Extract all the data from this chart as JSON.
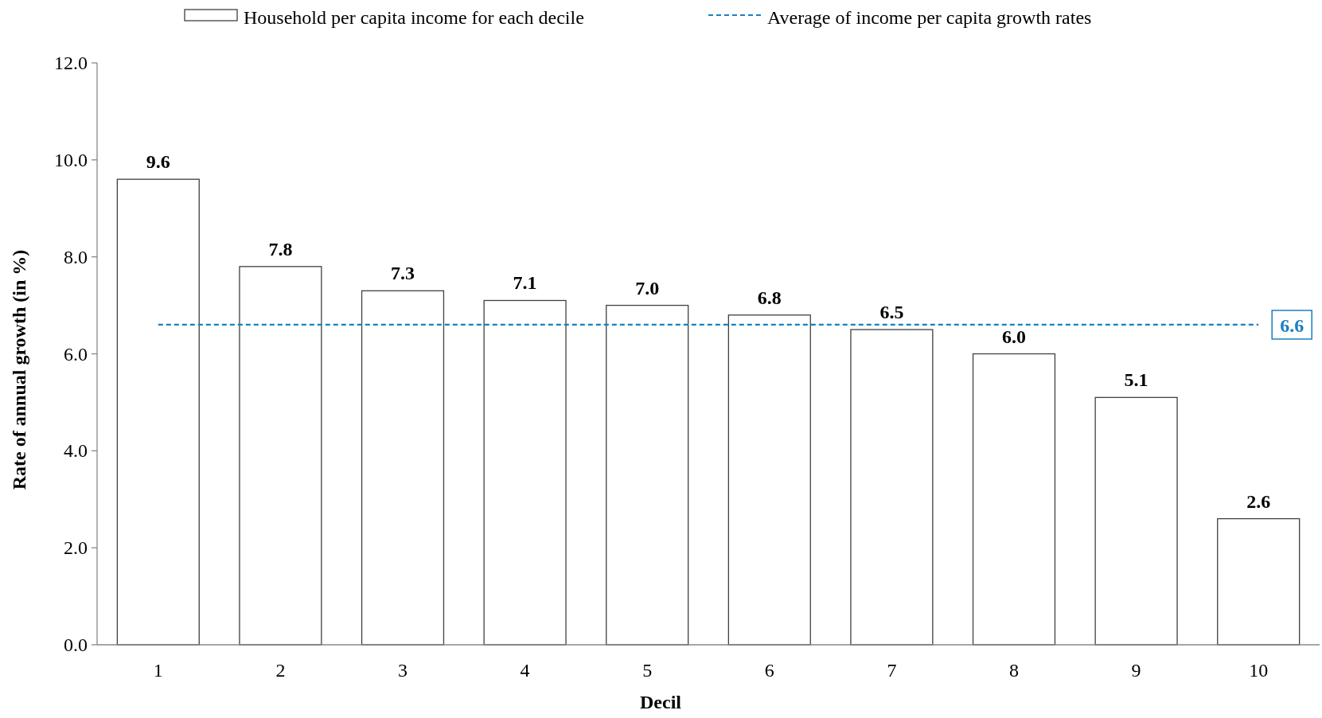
{
  "chart_data": {
    "type": "bar",
    "xlabel": "Decil",
    "ylabel": "Rate of annual growth (in %)",
    "categories": [
      "1",
      "2",
      "3",
      "4",
      "5",
      "6",
      "7",
      "8",
      "9",
      "10"
    ],
    "series": [
      {
        "name": "Household per capita income for each decile",
        "color": "#ffffff",
        "values": [
          9.6,
          7.8,
          7.3,
          7.1,
          7.0,
          6.8,
          6.5,
          6.0,
          5.1,
          2.6
        ],
        "value_labels": [
          "9.6",
          "7.8",
          "7.3",
          "7.1",
          "7.0",
          "6.8",
          "6.5",
          "6.0",
          "5.1",
          "2.6"
        ]
      },
      {
        "name": "Average of income per capita growth rates",
        "type": "line",
        "color": "#1a7fc1",
        "line_style": "dashed",
        "marker": "none",
        "values": [
          6.6,
          6.6,
          6.6,
          6.6,
          6.6,
          6.6,
          6.6,
          6.6,
          6.6,
          6.6
        ],
        "value_labels": [
          null,
          null,
          null,
          null,
          null,
          null,
          null,
          null,
          null,
          "6.6"
        ]
      }
    ],
    "ylim": [
      0,
      12
    ],
    "yticks": [
      {
        "value": 0,
        "label": "0.0"
      },
      {
        "value": 2,
        "label": "2.0"
      },
      {
        "value": 4,
        "label": "4.0"
      },
      {
        "value": 6,
        "label": "6.0"
      },
      {
        "value": 8,
        "label": "8.0"
      },
      {
        "value": 10,
        "label": "10.0"
      },
      {
        "value": 12,
        "label": "12.0"
      }
    ],
    "grid": false,
    "legend": "top"
  }
}
